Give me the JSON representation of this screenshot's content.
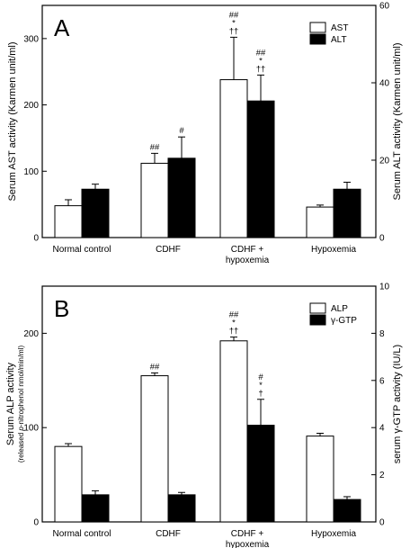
{
  "chart_data": [
    {
      "type": "bar",
      "panel_label": "A",
      "categories": [
        [
          "Normal control"
        ],
        [
          "CDHF"
        ],
        [
          "CDHF +",
          "hypoxemia"
        ],
        [
          "Hypoxemia"
        ]
      ],
      "left_axis": {
        "label": "Serum AST activity  (Karmen unit/ml)",
        "ylim": [
          0,
          350
        ],
        "ticks": [
          0,
          100,
          200,
          300
        ]
      },
      "right_axis": {
        "label": "Serum ALT activity  (Karmen unit/ml)",
        "ylim": [
          0,
          60
        ],
        "ticks": [
          0,
          20,
          40,
          60
        ]
      },
      "series": [
        {
          "name": "AST",
          "axis": "left",
          "fill": "#ffffff",
          "values": [
            48,
            112,
            238,
            46
          ],
          "errors": [
            9,
            15,
            64,
            3
          ],
          "annotations": [
            "",
            "##",
            "##\n*\n††",
            ""
          ]
        },
        {
          "name": "ALT",
          "axis": "right",
          "fill": "#000000",
          "values": [
            12.5,
            20.5,
            35.3,
            12.5
          ],
          "errors": [
            1.3,
            5.5,
            6.7,
            1.8
          ],
          "annotations": [
            "",
            "#",
            "##\n*\n††",
            ""
          ]
        }
      ],
      "legend_position": "top-right"
    },
    {
      "type": "bar",
      "panel_label": "B",
      "categories": [
        [
          "Normal control"
        ],
        [
          "CDHF"
        ],
        [
          "CDHF +",
          "hypoxemia"
        ],
        [
          "Hypoxemia"
        ]
      ],
      "left_axis": {
        "label": "Serum ALP activity",
        "sublabel_pre": "(released ",
        "sublabel_it": "p",
        "sublabel_post": "-nitrophenol nmol/min/ml)",
        "ylim": [
          0,
          250
        ],
        "ticks": [
          0,
          100,
          200
        ]
      },
      "right_axis": {
        "label": "serum γ-GTP activity (IU/L)",
        "ylim": [
          0,
          10
        ],
        "ticks": [
          0,
          2,
          4,
          6,
          8,
          10
        ]
      },
      "series": [
        {
          "name": "ALP",
          "axis": "left",
          "fill": "#ffffff",
          "values": [
            80,
            155,
            192,
            91
          ],
          "errors": [
            3,
            3,
            4,
            3
          ],
          "annotations": [
            "",
            "##",
            "##\n*\n††",
            ""
          ]
        },
        {
          "name": "γ-GTP",
          "axis": "right",
          "fill": "#000000",
          "values": [
            1.15,
            1.15,
            4.1,
            0.95
          ],
          "errors": [
            0.17,
            0.1,
            1.1,
            0.12
          ],
          "annotations": [
            "",
            "",
            "#\n*\n†",
            ""
          ]
        }
      ],
      "legend_position": "top-right"
    }
  ]
}
